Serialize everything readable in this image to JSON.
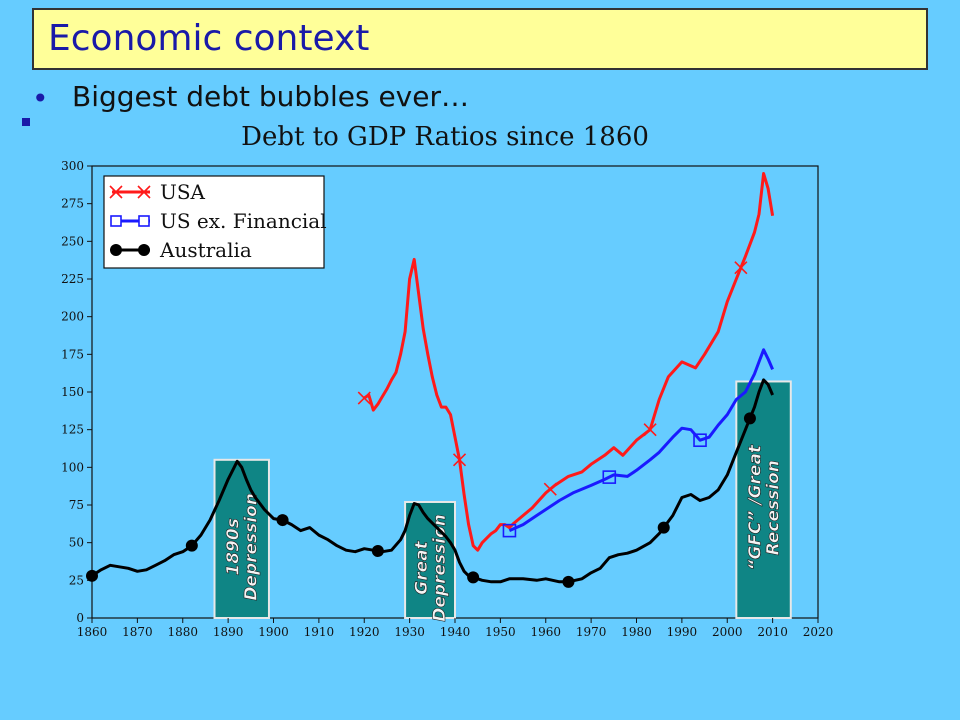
{
  "slide": {
    "title": "Economic context",
    "bullet": "Biggest debt bubbles ever…"
  },
  "colors": {
    "background": "#66ccff",
    "title_box": "#ffff99",
    "usa": "#ff1a1a",
    "us_ex_financial": "#1a1aff",
    "australia": "#000000",
    "period_band": "#0f8585"
  },
  "chart_data": {
    "type": "line",
    "title": "Debt to GDP Ratios since 1860",
    "xlim": [
      1860,
      2020
    ],
    "ylim": [
      0,
      300
    ],
    "x_ticks": [
      1860,
      1870,
      1880,
      1890,
      1900,
      1910,
      1920,
      1930,
      1940,
      1950,
      1960,
      1970,
      1980,
      1990,
      2000,
      2010,
      2020
    ],
    "y_ticks": [
      0,
      25,
      50,
      75,
      100,
      125,
      150,
      175,
      200,
      225,
      250,
      275,
      300
    ],
    "legend_position": "top-left",
    "grid": false,
    "series": [
      {
        "name": "USA",
        "color": "#ff1a1a",
        "marker": "x",
        "x": [
          1920,
          1921,
          1922,
          1923,
          1924,
          1925,
          1926,
          1927,
          1928,
          1929,
          1930,
          1931,
          1932,
          1933,
          1934,
          1935,
          1936,
          1937,
          1938,
          1939,
          1940,
          1941,
          1942,
          1943,
          1944,
          1945,
          1946,
          1947,
          1948,
          1949,
          1950,
          1951,
          1952,
          1953,
          1955,
          1957,
          1960,
          1962,
          1965,
          1968,
          1970,
          1973,
          1975,
          1977,
          1980,
          1983,
          1985,
          1987,
          1990,
          1993,
          1995,
          1998,
          2000,
          2002,
          2004,
          2006,
          2007,
          2008,
          2009,
          2010
        ],
        "y": [
          146,
          148,
          138,
          142,
          147,
          152,
          158,
          163,
          175,
          190,
          225,
          238,
          215,
          192,
          175,
          160,
          148,
          140,
          140,
          135,
          120,
          105,
          82,
          62,
          48,
          45,
          50,
          53,
          56,
          58,
          62,
          62,
          60,
          63,
          68,
          73,
          83,
          88,
          94,
          97,
          102,
          108,
          113,
          108,
          118,
          125,
          145,
          160,
          170,
          166,
          175,
          190,
          210,
          225,
          240,
          256,
          268,
          295,
          285,
          267
        ],
        "marker_x": [
          1920,
          1941,
          1961,
          1983,
          2003
        ]
      },
      {
        "name": "US ex. Financial",
        "color": "#1a1aff",
        "marker": "square",
        "x": [
          1952,
          1955,
          1958,
          1960,
          1963,
          1966,
          1970,
          1973,
          1975,
          1978,
          1980,
          1983,
          1985,
          1988,
          1990,
          1992,
          1994,
          1996,
          1998,
          2000,
          2002,
          2004,
          2006,
          2007,
          2008,
          2009,
          2010
        ],
        "y": [
          58,
          62,
          68,
          72,
          78,
          83,
          88,
          92,
          95,
          94,
          98,
          105,
          110,
          120,
          126,
          125,
          118,
          120,
          128,
          135,
          145,
          150,
          162,
          170,
          178,
          172,
          165
        ],
        "marker_x": [
          1952,
          1974,
          1994
        ]
      },
      {
        "name": "Australia",
        "color": "#000000",
        "marker": "circle",
        "x": [
          1860,
          1862,
          1864,
          1866,
          1868,
          1870,
          1872,
          1874,
          1876,
          1878,
          1880,
          1882,
          1884,
          1886,
          1888,
          1890,
          1891,
          1892,
          1893,
          1894,
          1895,
          1896,
          1897,
          1898,
          1900,
          1902,
          1904,
          1906,
          1908,
          1910,
          1912,
          1914,
          1916,
          1918,
          1920,
          1922,
          1924,
          1926,
          1928,
          1929,
          1930,
          1931,
          1932,
          1933,
          1934,
          1935,
          1936,
          1937,
          1938,
          1939,
          1940,
          1941,
          1942,
          1943,
          1944,
          1946,
          1948,
          1950,
          1952,
          1955,
          1958,
          1960,
          1963,
          1965,
          1968,
          1970,
          1972,
          1974,
          1976,
          1978,
          1980,
          1983,
          1985,
          1986,
          1988,
          1990,
          1992,
          1994,
          1996,
          1998,
          2000,
          2002,
          2004,
          2006,
          2007,
          2008,
          2009,
          2010
        ],
        "y": [
          28,
          32,
          35,
          34,
          33,
          31,
          32,
          35,
          38,
          42,
          44,
          48,
          55,
          65,
          78,
          92,
          98,
          104,
          100,
          92,
          85,
          80,
          76,
          72,
          66,
          65,
          62,
          58,
          60,
          55,
          52,
          48,
          45,
          44,
          46,
          45,
          44,
          45,
          52,
          58,
          68,
          76,
          75,
          70,
          66,
          63,
          60,
          57,
          54,
          50,
          45,
          37,
          31,
          28,
          27,
          25,
          24,
          24,
          26,
          26,
          25,
          26,
          24,
          24,
          26,
          30,
          33,
          40,
          42,
          43,
          45,
          50,
          56,
          60,
          68,
          80,
          82,
          78,
          80,
          85,
          95,
          110,
          125,
          140,
          150,
          158,
          155,
          148
        ],
        "marker_x": [
          1860,
          1882,
          1902,
          1923,
          1944,
          1965,
          1986,
          2005
        ]
      }
    ],
    "periods": [
      {
        "label_lines": [
          "1890s",
          "Depression"
        ],
        "x_start": 1887,
        "x_end": 1899,
        "y_top": 105
      },
      {
        "label_lines": [
          "Great",
          "Depression"
        ],
        "x_start": 1929,
        "x_end": 1940,
        "y_top": 77
      },
      {
        "label_lines": [
          "“GFC” /Great",
          "Recession"
        ],
        "x_start": 2002,
        "x_end": 2014,
        "y_top": 157
      }
    ]
  }
}
